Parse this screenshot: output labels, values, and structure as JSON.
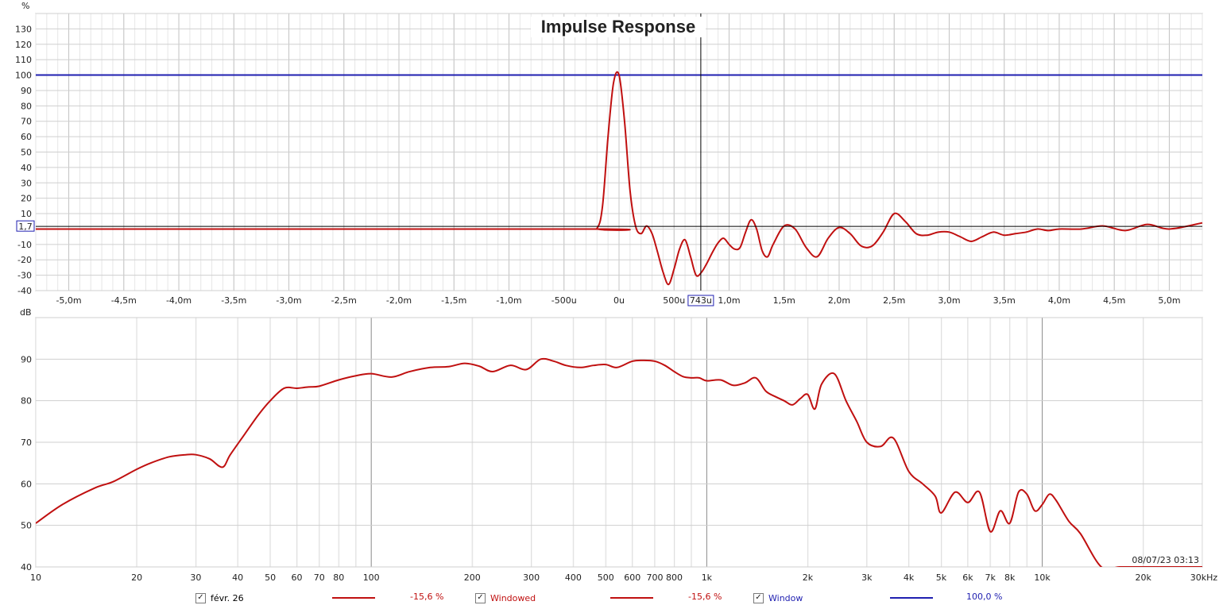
{
  "chart_data": [
    {
      "type": "line",
      "title": "Impulse Response",
      "ylabel": "%",
      "xlim": [
        -5.3,
        5.3
      ],
      "ylim": [
        -40,
        140
      ],
      "x_tick_labels": [
        "-5,0m",
        "-4,5m",
        "-4,0m",
        "-3,5m",
        "-3,0m",
        "-2,5m",
        "-2,0m",
        "-1,5m",
        "-1,0m",
        "-500u",
        "0u",
        "500u",
        "1,0m",
        "1,5m",
        "2,0m",
        "2,5m",
        "3,0m",
        "3,5m",
        "4,0m",
        "4,5m",
        "5,0m"
      ],
      "y_tick_labels": [
        "130",
        "120",
        "110",
        "100",
        "90",
        "80",
        "70",
        "60",
        "50",
        "40",
        "30",
        "20",
        "10",
        "-10",
        "-20",
        "-30",
        "-40"
      ],
      "cursor_x_label": "743u",
      "cursor_y_label": "1,7",
      "grid": true,
      "series": [
        {
          "name": "Window",
          "color": "#1f1fb0",
          "x": [
            -5.3,
            5.3
          ],
          "y": [
            100,
            100
          ]
        },
        {
          "name": "févr. 26",
          "color": "#c01010",
          "x": [
            -5.3,
            -0.3,
            -0.2,
            -0.15,
            -0.1,
            -0.05,
            0.0,
            0.05,
            0.1,
            0.15,
            0.2,
            0.25,
            0.3,
            0.35,
            0.4,
            0.45,
            0.5,
            0.55,
            0.6,
            0.65,
            0.7,
            0.75,
            0.8,
            0.85,
            0.9,
            0.95,
            1.0,
            1.05,
            1.1,
            1.15,
            1.2,
            1.25,
            1.3,
            1.35,
            1.4,
            1.5,
            1.6,
            1.7,
            1.8,
            1.9,
            2.0,
            2.1,
            2.2,
            2.3,
            2.4,
            2.5,
            2.6,
            2.7,
            2.8,
            2.9,
            3.0,
            3.1,
            3.2,
            3.3,
            3.4,
            3.5,
            3.6,
            3.7,
            3.8,
            3.9,
            4.0,
            4.2,
            4.4,
            4.6,
            4.8,
            5.0,
            5.3
          ],
          "y": [
            0,
            0,
            0.5,
            15,
            60,
            95,
            100,
            70,
            25,
            2,
            -3,
            2,
            -3,
            -15,
            -28,
            -36,
            -26,
            -13,
            -7,
            -18,
            -30,
            -28,
            -22,
            -15,
            -9,
            -6,
            -10,
            -13,
            -12,
            -2,
            6,
            0,
            -14,
            -18,
            -10,
            2,
            0,
            -12,
            -18,
            -6,
            1,
            -3,
            -11,
            -11,
            -2,
            10,
            5,
            -3,
            -4,
            -2,
            -2,
            -5,
            -8,
            -5,
            -2,
            -4,
            -3,
            -2,
            0,
            -1,
            0,
            0,
            2,
            -1,
            3,
            0,
            4
          ]
        }
      ]
    },
    {
      "type": "line",
      "ylabel": "dB",
      "x_scale": "log",
      "xlim": [
        10,
        30000
      ],
      "ylim": [
        40,
        100
      ],
      "x_tick_labels": [
        "10",
        "20",
        "30",
        "40",
        "50",
        "60",
        "70",
        "80",
        "100",
        "200",
        "300",
        "400",
        "500",
        "600",
        "700",
        "800",
        "1k",
        "2k",
        "3k",
        "4k",
        "5k",
        "6k",
        "7k",
        "8k",
        "10k",
        "20k",
        "30kHz"
      ],
      "y_tick_labels": [
        "90",
        "80",
        "70",
        "60",
        "50",
        "40"
      ],
      "timestamp": "08/07/23 03:13",
      "grid": true,
      "series": [
        {
          "name": "févr. 26",
          "color": "#c01010",
          "x": [
            10,
            12,
            15,
            17,
            20,
            22,
            25,
            28,
            30,
            33,
            36,
            38,
            42,
            46,
            50,
            55,
            60,
            65,
            70,
            80,
            90,
            100,
            115,
            130,
            150,
            170,
            190,
            210,
            230,
            260,
            290,
            320,
            350,
            380,
            420,
            460,
            500,
            540,
            600,
            650,
            700,
            750,
            800,
            850,
            900,
            950,
            1000,
            1100,
            1200,
            1300,
            1400,
            1500,
            1600,
            1700,
            1800,
            1900,
            2000,
            2100,
            2200,
            2400,
            2600,
            2800,
            3000,
            3300,
            3600,
            4000,
            4400,
            4800,
            5000,
            5500,
            6000,
            6500,
            7000,
            7500,
            8000,
            8500,
            9000,
            9500,
            10000,
            10500,
            11000,
            12000,
            13000,
            15000,
            17000,
            20000,
            25000,
            30000
          ],
          "y": [
            50.5,
            55,
            59,
            60.5,
            63.5,
            65,
            66.5,
            67,
            67,
            66,
            64,
            67,
            72,
            76.5,
            80,
            83,
            83,
            83.3,
            83.5,
            85,
            86,
            86.5,
            85.7,
            87,
            88,
            88.2,
            89,
            88.3,
            87,
            88.5,
            87.5,
            90,
            89.5,
            88.5,
            88,
            88.5,
            88.7,
            88,
            89.5,
            89.7,
            89.5,
            88.5,
            87,
            85.8,
            85.5,
            85.5,
            84.8,
            85,
            83.7,
            84.3,
            85.5,
            82.3,
            81,
            80,
            79,
            80.5,
            81.5,
            78,
            84,
            86.5,
            80,
            75,
            70,
            69,
            71,
            63,
            60,
            57,
            53,
            58,
            55.5,
            58,
            48.5,
            53.5,
            50.5,
            58,
            57.5,
            53.5,
            55,
            57.5,
            56,
            51,
            48,
            40,
            40,
            40,
            40,
            40
          ]
        }
      ]
    }
  ],
  "legend": {
    "items": [
      {
        "label": "févr. 26",
        "value": "-15,6 %",
        "checked": true,
        "label_color": "#000000",
        "line_color": "#c01010"
      },
      {
        "label": "Windowed",
        "value": "-15,6 %",
        "checked": true,
        "label_color": "#c01010",
        "line_color": "#c01010"
      },
      {
        "label": "Window",
        "value": "100,0 %",
        "checked": true,
        "label_color": "#1f1fb0",
        "line_color": "#1f1fb0"
      }
    ]
  }
}
